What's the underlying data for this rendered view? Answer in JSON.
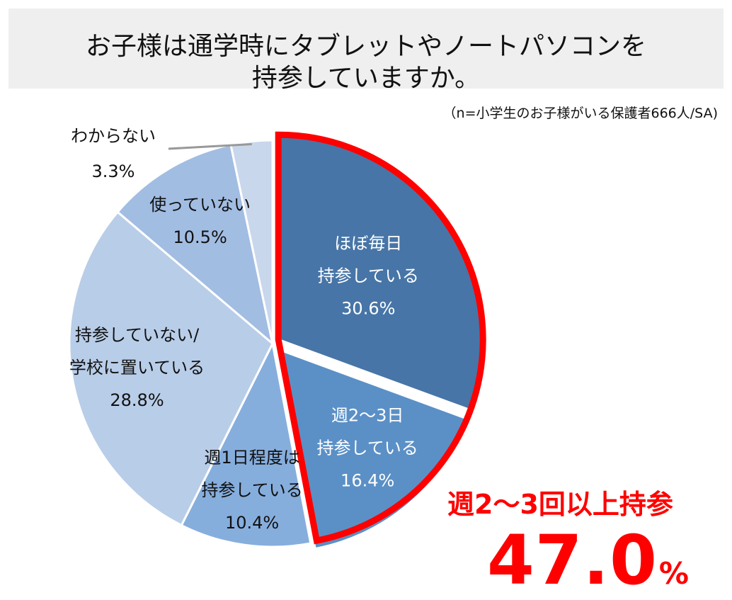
{
  "title": {
    "line1": "お子様は通学時にタブレットやノートパソコンを",
    "line2": "持参していますか。"
  },
  "note": "（n=小学生のお子様がいる保護者666人/SA)",
  "chart_data": {
    "type": "pie",
    "slices": [
      {
        "label_lines": [
          "ほぼ毎日",
          "持参している"
        ],
        "value": 30.6,
        "value_label": "30.6%",
        "color": "#4775a7",
        "text_color": "#ffffff",
        "highlighted": true
      },
      {
        "label_lines": [
          "週2〜3日",
          "持参している"
        ],
        "value": 16.4,
        "value_label": "16.4%",
        "color": "#5b90c6",
        "text_color": "#ffffff",
        "highlighted": true
      },
      {
        "label_lines": [
          "週1日程度は",
          "持参している"
        ],
        "value": 10.4,
        "value_label": "10.4%",
        "color": "#86aedd",
        "text_color": "#111111",
        "highlighted": false
      },
      {
        "label_lines": [
          "持参していない/",
          "学校に置いている"
        ],
        "value": 28.8,
        "value_label": "28.8%",
        "color": "#b8cde8",
        "text_color": "#111111",
        "highlighted": false
      },
      {
        "label_lines": [
          "使っていない"
        ],
        "value": 10.5,
        "value_label": "10.5%",
        "color": "#a2bde2",
        "text_color": "#111111",
        "highlighted": false
      },
      {
        "label_lines": [
          "わからない"
        ],
        "value": 3.3,
        "value_label": "3.3%",
        "color": "#c9d7ec",
        "text_color": "#111111",
        "highlighted": false
      }
    ],
    "start": "12 o'clock",
    "direction": "clockwise",
    "highlight_color": "#ff0000"
  },
  "callout": {
    "label": "週2〜3回以上持参",
    "number": "47.0",
    "unit": "%"
  }
}
